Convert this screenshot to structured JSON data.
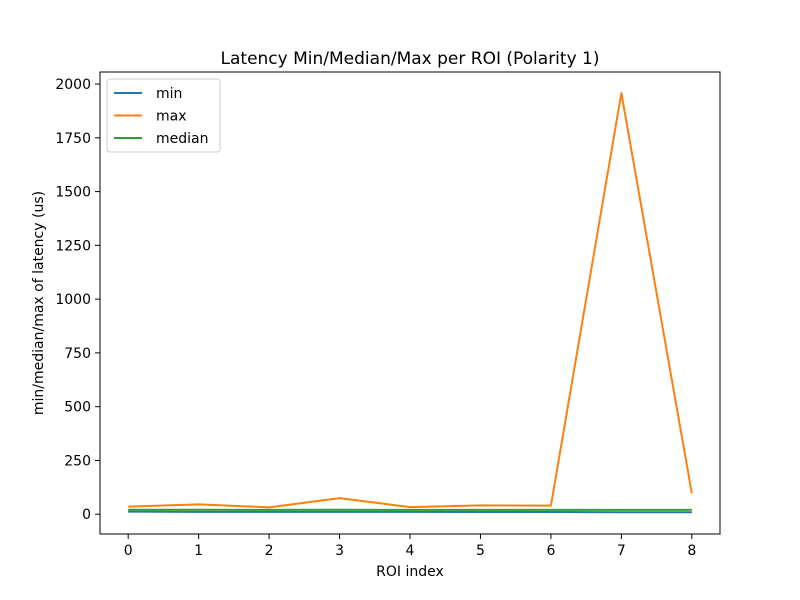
{
  "chart_data": {
    "type": "line",
    "title": "Latency Min/Median/Max per ROI (Polarity 1)",
    "xlabel": "ROI index",
    "ylabel": "min/median/max of latency (us)",
    "x": [
      0,
      1,
      2,
      3,
      4,
      5,
      6,
      7,
      8
    ],
    "xlim": [
      -0.4,
      8.4
    ],
    "ylim": [
      -92,
      2056
    ],
    "xticks": [
      0,
      1,
      2,
      3,
      4,
      5,
      6,
      7,
      8
    ],
    "yticks": [
      0,
      250,
      500,
      750,
      1000,
      1250,
      1500,
      1750,
      2000
    ],
    "grid": false,
    "legend_position": "upper-left",
    "series": [
      {
        "name": "min",
        "color": "#1f77b4",
        "values": [
          12,
          11,
          11,
          11,
          11,
          10,
          10,
          9,
          9
        ]
      },
      {
        "name": "max",
        "color": "#ff7f0e",
        "values": [
          35,
          46,
          32,
          75,
          33,
          41,
          40,
          1958,
          97
        ]
      },
      {
        "name": "median",
        "color": "#2ca02c",
        "values": [
          21,
          21,
          20,
          21,
          20,
          20,
          20,
          20,
          20
        ]
      }
    ]
  }
}
